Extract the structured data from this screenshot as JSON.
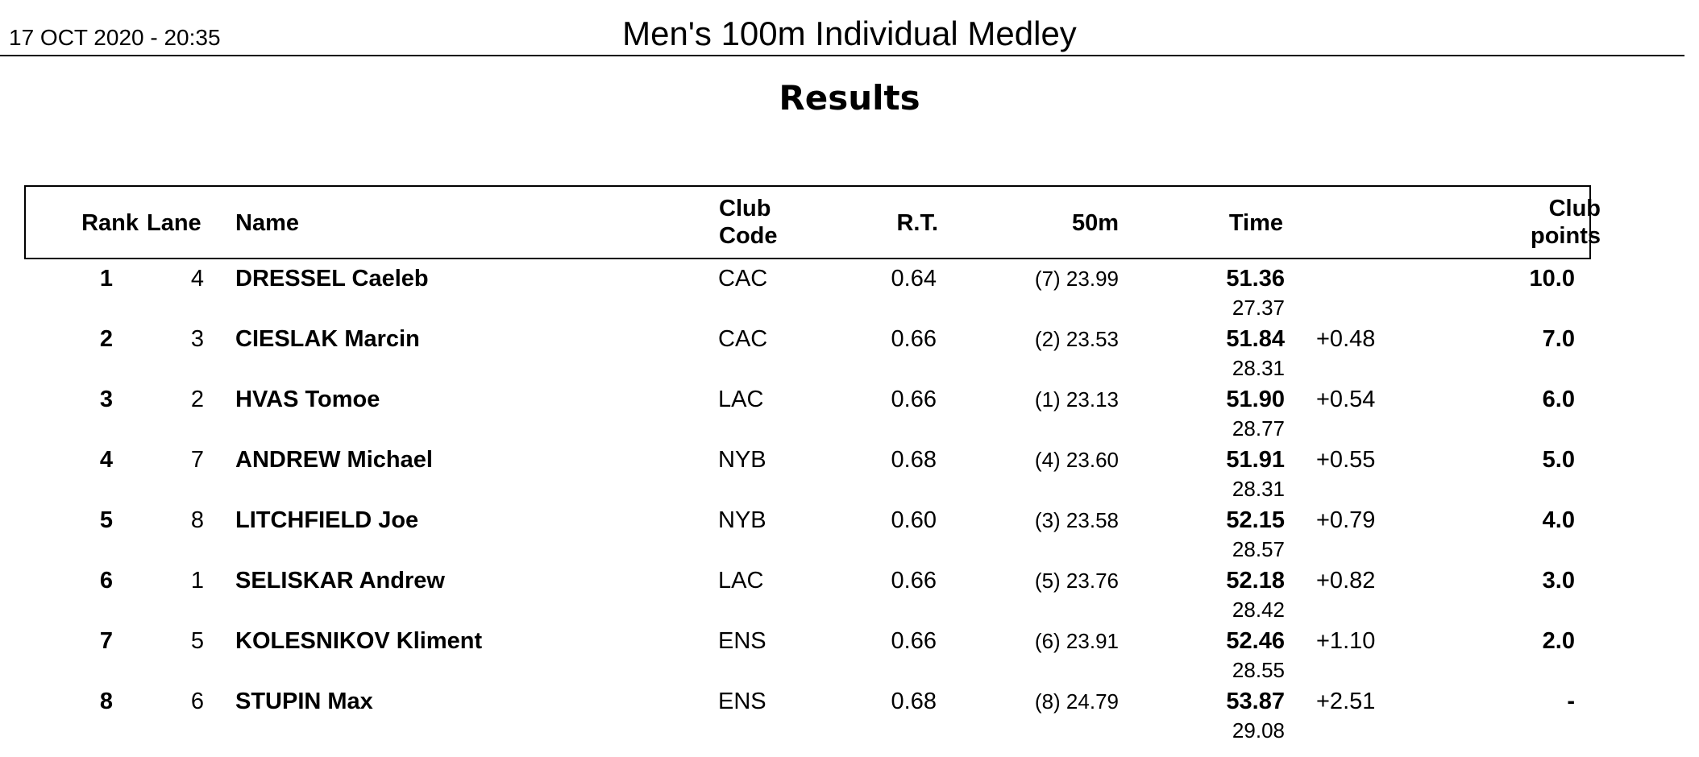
{
  "header": {
    "date": "17 OCT 2020 - 20:35",
    "event_title": "Men's 100m Individual Medley",
    "subtitle": "Results"
  },
  "columns": {
    "rank": "Rank",
    "lane": "Lane",
    "name": "Name",
    "club_line1": "Club",
    "club_line2": "Code",
    "rt": "R.T.",
    "split50": "50m",
    "time": "Time",
    "points_line1": "Club",
    "points_line2": "points"
  },
  "rows": [
    {
      "rank": "1",
      "lane": "4",
      "name": "DRESSEL Caeleb",
      "club": "CAC",
      "rt": "0.64",
      "split50": "(7) 23.99",
      "time": "51.36",
      "split2": "27.37",
      "behind": "",
      "points": "10.0"
    },
    {
      "rank": "2",
      "lane": "3",
      "name": "CIESLAK Marcin",
      "club": "CAC",
      "rt": "0.66",
      "split50": "(2) 23.53",
      "time": "51.84",
      "split2": "28.31",
      "behind": "+0.48",
      "points": "7.0"
    },
    {
      "rank": "3",
      "lane": "2",
      "name": "HVAS Tomoe",
      "club": "LAC",
      "rt": "0.66",
      "split50": "(1) 23.13",
      "time": "51.90",
      "split2": "28.77",
      "behind": "+0.54",
      "points": "6.0"
    },
    {
      "rank": "4",
      "lane": "7",
      "name": "ANDREW Michael",
      "club": "NYB",
      "rt": "0.68",
      "split50": "(4) 23.60",
      "time": "51.91",
      "split2": "28.31",
      "behind": "+0.55",
      "points": "5.0"
    },
    {
      "rank": "5",
      "lane": "8",
      "name": "LITCHFIELD Joe",
      "club": "NYB",
      "rt": "0.60",
      "split50": "(3) 23.58",
      "time": "52.15",
      "split2": "28.57",
      "behind": "+0.79",
      "points": "4.0"
    },
    {
      "rank": "6",
      "lane": "1",
      "name": "SELISKAR Andrew",
      "club": "LAC",
      "rt": "0.66",
      "split50": "(5) 23.76",
      "time": "52.18",
      "split2": "28.42",
      "behind": "+0.82",
      "points": "3.0"
    },
    {
      "rank": "7",
      "lane": "5",
      "name": "KOLESNIKOV Kliment",
      "club": "ENS",
      "rt": "0.66",
      "split50": "(6) 23.91",
      "time": "52.46",
      "split2": "28.55",
      "behind": "+1.10",
      "points": "2.0"
    },
    {
      "rank": "8",
      "lane": "6",
      "name": "STUPIN Max",
      "club": "ENS",
      "rt": "0.68",
      "split50": "(8) 24.79",
      "time": "53.87",
      "split2": "29.08",
      "behind": "+2.51",
      "points": "-"
    }
  ]
}
